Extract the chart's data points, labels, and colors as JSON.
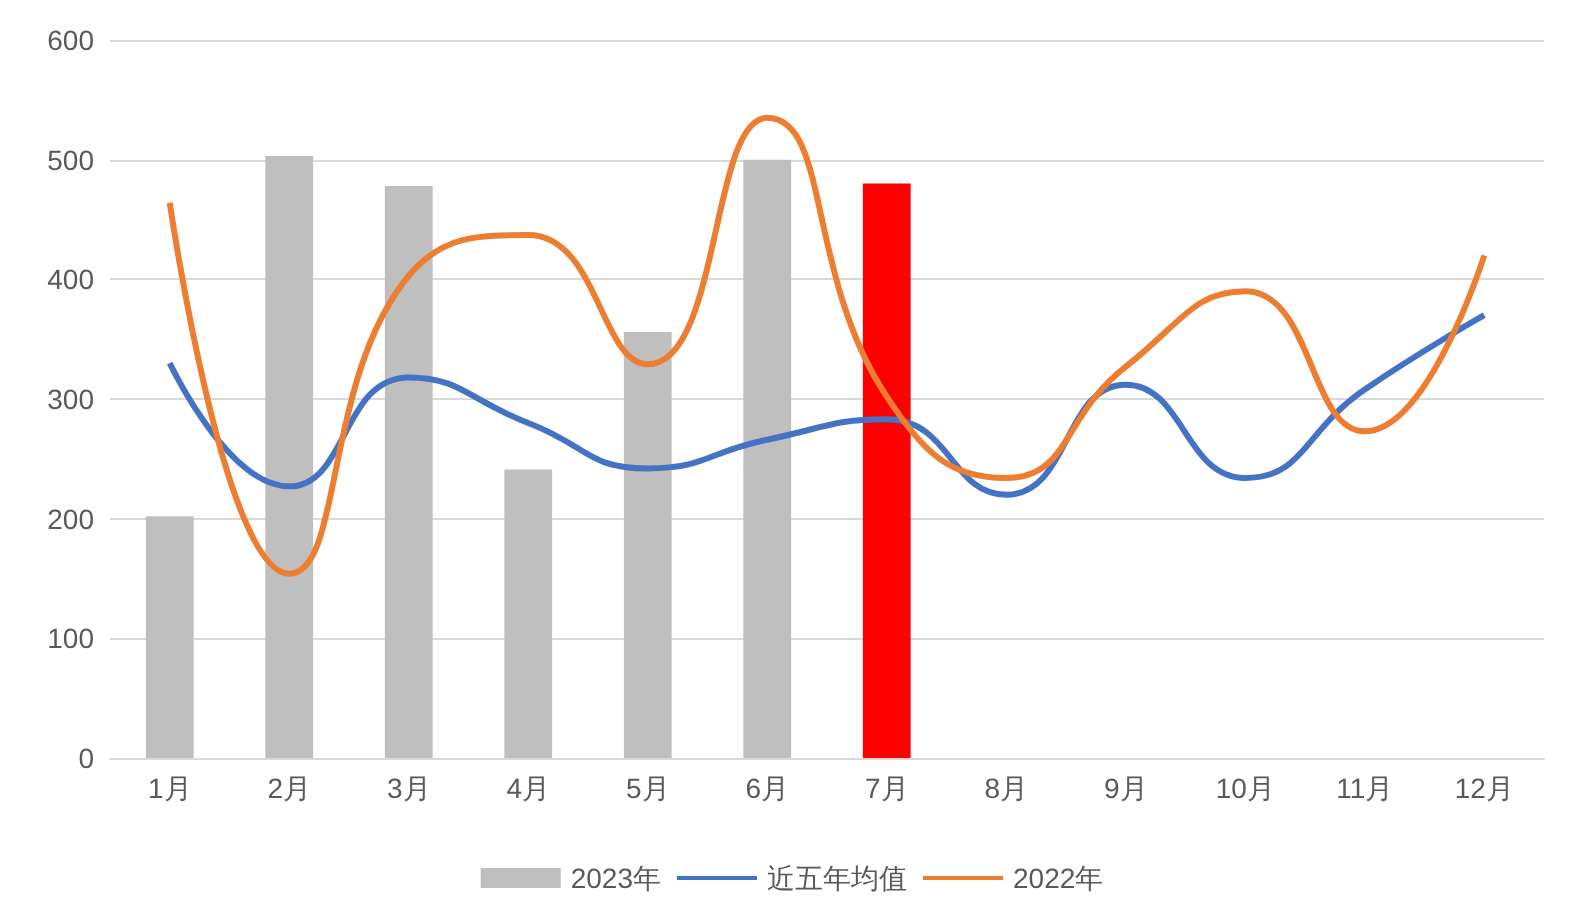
{
  "chart_data": {
    "type": "bar",
    "categories": [
      "1月",
      "2月",
      "3月",
      "4月",
      "5月",
      "6月",
      "7月",
      "8月",
      "9月",
      "10月",
      "11月",
      "12月"
    ],
    "series": [
      {
        "name": "2023年",
        "color": "#bfbfbf",
        "colors": [
          "#bfbfbf",
          "#bfbfbf",
          "#bfbfbf",
          "#bfbfbf",
          "#bfbfbf",
          "#bfbfbf",
          "#ff0000",
          null,
          null,
          null,
          null,
          null
        ],
        "values": [
          202,
          503,
          478,
          241,
          356,
          500,
          480,
          null,
          null,
          null,
          null,
          null
        ]
      },
      {
        "name": "近五年均值",
        "type": "line",
        "color": "#4472c4",
        "values": [
          330,
          227,
          318,
          280,
          242,
          266,
          283,
          220,
          312,
          234,
          308,
          370
        ]
      },
      {
        "name": "2022年",
        "type": "line",
        "color": "#ed7d31",
        "values": [
          464,
          154,
          403,
          437,
          329,
          535,
          302,
          234,
          327,
          390,
          273,
          420
        ]
      }
    ],
    "ylim": [
      0,
      600
    ],
    "yticks": [
      0,
      100,
      200,
      300,
      400,
      500,
      600
    ],
    "grid": "y",
    "legend": "bottom",
    "marker": "none"
  }
}
